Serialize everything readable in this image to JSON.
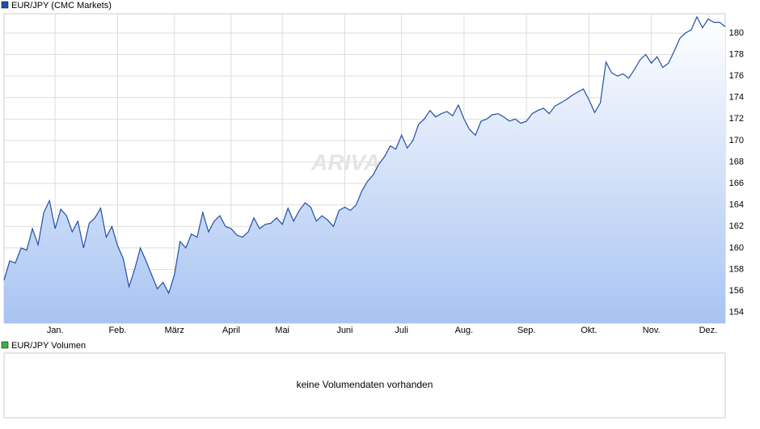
{
  "chart_data": {
    "type": "line",
    "title": "EUR/JPY (CMC Markets)",
    "watermark": "ARIVA.DE",
    "categories": [
      null,
      null,
      null,
      null,
      null,
      null,
      null,
      null,
      null,
      "Jan.",
      null,
      null,
      null,
      null,
      null,
      null,
      null,
      null,
      null,
      null,
      "Feb.",
      null,
      null,
      null,
      null,
      null,
      null,
      null,
      null,
      null,
      "März",
      null,
      null,
      null,
      null,
      null,
      null,
      null,
      null,
      null,
      "April",
      null,
      null,
      null,
      null,
      null,
      null,
      null,
      null,
      "Mai",
      null,
      null,
      null,
      null,
      null,
      null,
      null,
      null,
      null,
      null,
      "Juni",
      null,
      null,
      null,
      null,
      null,
      null,
      null,
      null,
      null,
      "Juli",
      null,
      null,
      null,
      null,
      null,
      null,
      null,
      null,
      null,
      null,
      "Aug.",
      null,
      null,
      null,
      null,
      null,
      null,
      null,
      null,
      null,
      null,
      "Sep.",
      null,
      null,
      null,
      null,
      null,
      null,
      null,
      null,
      null,
      null,
      "Okt.",
      null,
      null,
      null,
      null,
      null,
      null,
      null,
      null,
      null,
      null,
      "Nov.",
      null,
      null,
      null,
      null,
      null,
      null,
      null,
      null,
      null,
      "Dez.",
      null,
      null,
      null
    ],
    "series": [
      {
        "name": "EUR/JPY (CMC Markets)",
        "color": "#1f4fa8",
        "values": [
          157.0,
          158.8,
          158.6,
          160.0,
          159.8,
          161.8,
          160.3,
          163.3,
          164.4,
          161.8,
          163.6,
          163.0,
          161.5,
          162.5,
          160.0,
          162.3,
          162.8,
          163.7,
          161.0,
          162.0,
          160.2,
          159.0,
          156.4,
          158.0,
          160.0,
          158.8,
          157.5,
          156.2,
          156.8,
          155.8,
          157.5,
          160.6,
          160.0,
          161.3,
          161.0,
          163.3,
          161.5,
          162.5,
          163.0,
          162.0,
          161.8,
          161.2,
          161.0,
          161.5,
          162.8,
          161.8,
          162.2,
          162.3,
          162.8,
          162.2,
          163.7,
          162.5,
          163.5,
          164.2,
          163.8,
          162.5,
          163.0,
          162.6,
          162.0,
          163.5,
          163.8,
          163.5,
          164.0,
          165.3,
          166.2,
          166.8,
          167.8,
          168.5,
          169.5,
          169.2,
          170.5,
          169.3,
          170.0,
          171.5,
          172.0,
          172.8,
          172.2,
          172.5,
          172.7,
          172.3,
          173.3,
          172.0,
          171.0,
          170.5,
          171.8,
          172.0,
          172.4,
          172.5,
          172.2,
          171.8,
          172.0,
          171.6,
          171.8,
          172.5,
          172.8,
          173.0,
          172.5,
          173.2,
          173.5,
          173.8,
          174.2,
          174.5,
          174.8,
          173.8,
          172.6,
          173.5,
          177.3,
          176.3,
          176.0,
          176.2,
          175.8,
          176.6,
          177.5,
          178.0,
          177.2,
          177.8,
          176.8,
          177.2,
          178.3,
          179.5,
          180.0,
          180.3,
          181.5,
          180.5,
          181.3,
          181.0,
          181.0,
          180.6
        ]
      }
    ],
    "ylim": [
      153,
      181.8
    ],
    "yticks": [
      154,
      156,
      158,
      160,
      162,
      164,
      166,
      168,
      170,
      172,
      174,
      176,
      178,
      180
    ],
    "grid": true
  },
  "volume_panel": {
    "legend": "EUR/JPY Volumen",
    "color": "#3cb043",
    "message": "keine Volumendaten vorhanden"
  }
}
